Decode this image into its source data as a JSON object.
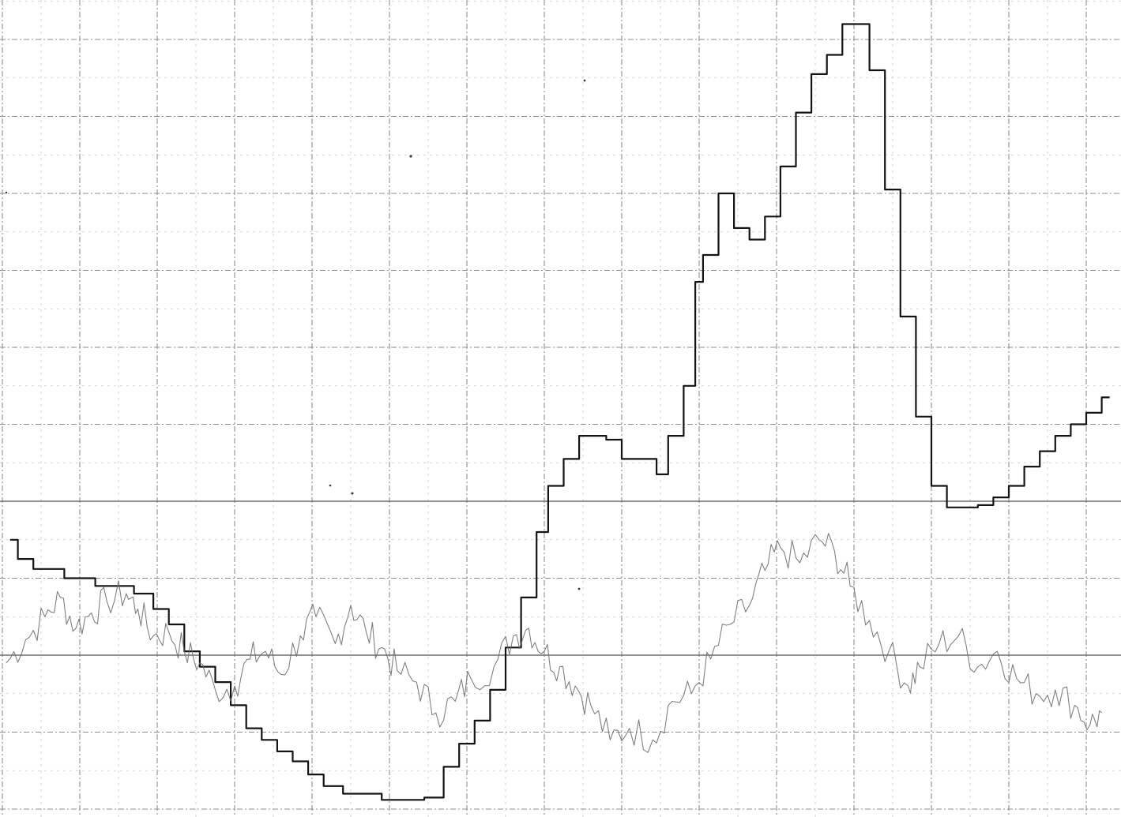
{
  "chart_data": {
    "type": "line",
    "title": "",
    "xlabel": "",
    "ylabel": "",
    "grid": true,
    "legend": "none",
    "xlim": [
      0,
      14.2
    ],
    "ylim": [
      0,
      10.5
    ],
    "colors": {
      "paper": "#ffffff",
      "grid": "#8e8e8e",
      "trace_stepped": "#141414",
      "trace_noisy": "#6a6a6a"
    },
    "series": [
      {
        "style": "stepped",
        "points": [
          [
            0.1,
            3.5
          ],
          [
            0.2,
            3.25
          ],
          [
            0.4,
            3.12
          ],
          [
            0.8,
            3.0
          ],
          [
            1.2,
            2.9
          ],
          [
            1.7,
            2.8
          ],
          [
            1.95,
            2.6
          ],
          [
            2.15,
            2.4
          ],
          [
            2.35,
            2.05
          ],
          [
            2.55,
            1.85
          ],
          [
            2.75,
            1.65
          ],
          [
            2.95,
            1.35
          ],
          [
            3.15,
            1.05
          ],
          [
            3.35,
            0.9
          ],
          [
            3.55,
            0.75
          ],
          [
            3.75,
            0.62
          ],
          [
            3.95,
            0.45
          ],
          [
            4.15,
            0.3
          ],
          [
            4.4,
            0.2
          ],
          [
            4.9,
            0.12
          ],
          [
            5.45,
            0.15
          ],
          [
            5.7,
            0.55
          ],
          [
            5.9,
            0.85
          ],
          [
            6.1,
            1.15
          ],
          [
            6.3,
            1.55
          ],
          [
            6.5,
            2.1
          ],
          [
            6.7,
            2.75
          ],
          [
            6.9,
            3.6
          ],
          [
            7.05,
            4.2
          ],
          [
            7.25,
            4.55
          ],
          [
            7.45,
            4.85
          ],
          [
            7.8,
            4.8
          ],
          [
            8.0,
            4.55
          ],
          [
            8.45,
            4.35
          ],
          [
            8.6,
            4.85
          ],
          [
            8.8,
            5.5
          ],
          [
            8.95,
            6.85
          ],
          [
            9.05,
            7.2
          ],
          [
            9.25,
            8.0
          ],
          [
            9.45,
            7.55
          ],
          [
            9.65,
            7.4
          ],
          [
            9.85,
            7.7
          ],
          [
            10.05,
            8.35
          ],
          [
            10.25,
            9.05
          ],
          [
            10.45,
            9.55
          ],
          [
            10.65,
            9.8
          ],
          [
            10.85,
            10.2
          ],
          [
            11.2,
            9.6
          ],
          [
            11.4,
            8.05
          ],
          [
            11.6,
            6.4
          ],
          [
            11.8,
            5.1
          ],
          [
            12.0,
            4.2
          ],
          [
            12.2,
            3.92
          ],
          [
            12.6,
            3.95
          ],
          [
            12.8,
            4.05
          ],
          [
            13.0,
            4.2
          ],
          [
            13.2,
            4.45
          ],
          [
            13.4,
            4.65
          ],
          [
            13.6,
            4.85
          ],
          [
            13.8,
            5.0
          ],
          [
            14.0,
            5.15
          ],
          [
            14.2,
            5.35
          ]
        ]
      },
      {
        "style": "noisy",
        "points": [
          [
            0.05,
            1.9
          ],
          [
            0.3,
            2.2
          ],
          [
            0.55,
            2.5
          ],
          [
            0.75,
            2.75
          ],
          [
            0.95,
            2.35
          ],
          [
            1.15,
            2.55
          ],
          [
            1.35,
            2.7
          ],
          [
            1.6,
            2.8
          ],
          [
            1.75,
            2.6
          ],
          [
            1.95,
            2.25
          ],
          [
            2.15,
            2.3
          ],
          [
            2.35,
            2.05
          ],
          [
            2.55,
            1.9
          ],
          [
            2.75,
            1.55
          ],
          [
            3.0,
            1.6
          ],
          [
            3.2,
            1.95
          ],
          [
            3.4,
            2.05
          ],
          [
            3.6,
            1.75
          ],
          [
            3.85,
            2.25
          ],
          [
            4.05,
            2.5
          ],
          [
            4.3,
            2.15
          ],
          [
            4.5,
            2.65
          ],
          [
            4.7,
            2.3
          ],
          [
            4.9,
            2.1
          ],
          [
            5.1,
            1.8
          ],
          [
            5.35,
            1.65
          ],
          [
            5.6,
            1.25
          ],
          [
            5.85,
            1.4
          ],
          [
            6.05,
            1.7
          ],
          [
            6.35,
            1.85
          ],
          [
            6.6,
            2.25
          ],
          [
            6.8,
            2.35
          ],
          [
            7.0,
            2.05
          ],
          [
            7.2,
            1.85
          ],
          [
            7.4,
            1.6
          ],
          [
            7.6,
            1.35
          ],
          [
            7.85,
            0.9
          ],
          [
            8.1,
            1.05
          ],
          [
            8.4,
            0.9
          ],
          [
            8.65,
            1.4
          ],
          [
            8.9,
            1.5
          ],
          [
            9.15,
            1.95
          ],
          [
            9.4,
            2.4
          ],
          [
            9.65,
            2.65
          ],
          [
            9.85,
            3.1
          ],
          [
            10.05,
            3.4
          ],
          [
            10.3,
            3.2
          ],
          [
            10.55,
            3.5
          ],
          [
            10.75,
            3.35
          ],
          [
            10.95,
            2.9
          ],
          [
            11.2,
            2.45
          ],
          [
            11.45,
            2.05
          ],
          [
            11.7,
            1.6
          ],
          [
            11.85,
            1.85
          ],
          [
            12.1,
            2.15
          ],
          [
            12.35,
            2.25
          ],
          [
            12.6,
            1.85
          ],
          [
            12.85,
            2.05
          ],
          [
            13.1,
            1.7
          ],
          [
            13.35,
            1.5
          ],
          [
            13.6,
            1.55
          ],
          [
            13.85,
            1.35
          ],
          [
            14.05,
            1.1
          ],
          [
            14.2,
            1.25
          ]
        ]
      }
    ]
  }
}
